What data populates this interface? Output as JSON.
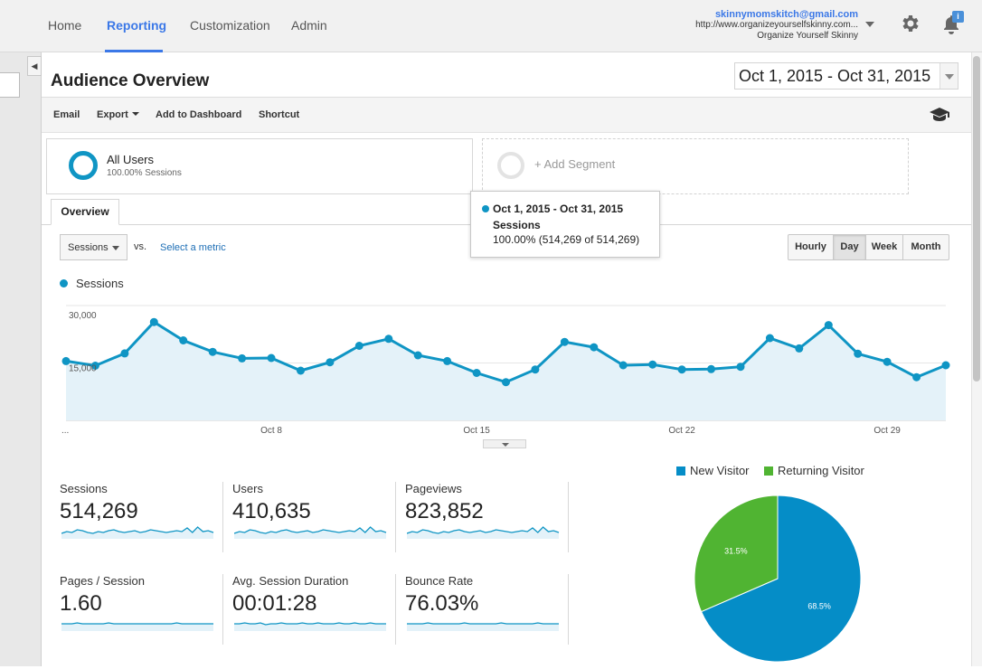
{
  "nav": {
    "tabs": [
      "Home",
      "Reporting",
      "Customization",
      "Admin"
    ],
    "active": "Reporting"
  },
  "account": {
    "email": "skinnymomskitch@gmail.com",
    "url": "http://www.organizeyourselfskinny.com...",
    "property": "Organize Yourself Skinny",
    "notification_badge": "i"
  },
  "page": {
    "title": "Audience Overview",
    "date_range": "Oct 1, 2015 - Oct 31, 2015"
  },
  "toolbar": {
    "email": "Email",
    "export": "Export",
    "add_to_dashboard": "Add to Dashboard",
    "shortcut": "Shortcut"
  },
  "segments": {
    "active_name": "All Users",
    "active_sub": "100.00% Sessions",
    "add_label": "+ Add Segment"
  },
  "tabs": {
    "overview": "Overview"
  },
  "tooltip": {
    "date": "Oct 1, 2015 - Oct 31, 2015",
    "metric": "Sessions",
    "value": "100.00% (514,269 of 514,269)"
  },
  "controls": {
    "metric_select": "Sessions",
    "vs": "vs.",
    "select_metric": "Select a metric",
    "granularity": [
      "Hourly",
      "Day",
      "Week",
      "Month"
    ],
    "granularity_active": "Day"
  },
  "chart_data": {
    "type": "area",
    "legend": "Sessions",
    "series_color": "#0f95c4",
    "fill_color": "#e4f2f9",
    "y_ticks": [
      "30,000",
      "15,000"
    ],
    "x_tick_labels": [
      "...",
      "Oct 8",
      "Oct 15",
      "Oct 22",
      "Oct 29"
    ],
    "x_tick_days": [
      1,
      8,
      15,
      22,
      29
    ],
    "ylim": [
      0,
      30000
    ],
    "x": [
      1,
      2,
      3,
      4,
      5,
      6,
      7,
      8,
      9,
      10,
      11,
      12,
      13,
      14,
      15,
      16,
      17,
      18,
      19,
      20,
      21,
      22,
      23,
      24,
      25,
      26,
      27,
      28,
      29,
      30,
      31
    ],
    "values": [
      15500,
      14300,
      17500,
      25700,
      20900,
      17900,
      16200,
      16300,
      13000,
      15200,
      19500,
      21300,
      17000,
      15500,
      12400,
      10000,
      13300,
      20500,
      19100,
      14400,
      14600,
      13300,
      13400,
      14000,
      21500,
      18800,
      24900,
      17400,
      15300,
      11300,
      14400
    ]
  },
  "stats": [
    {
      "label": "Sessions",
      "value": "514,269",
      "spark": [
        14,
        12,
        13,
        10,
        11,
        13,
        14,
        12,
        13,
        11,
        10,
        12,
        13,
        12,
        11,
        13,
        12,
        10,
        11,
        12,
        13,
        12,
        11,
        12,
        8,
        13,
        7,
        12,
        11,
        13
      ]
    },
    {
      "label": "Users",
      "value": "410,635",
      "spark": [
        14,
        12,
        13,
        10,
        11,
        13,
        14,
        12,
        13,
        11,
        10,
        12,
        13,
        12,
        11,
        13,
        12,
        10,
        11,
        12,
        13,
        12,
        11,
        12,
        8,
        13,
        7,
        12,
        11,
        13
      ]
    },
    {
      "label": "Pageviews",
      "value": "823,852",
      "spark": [
        14,
        12,
        13,
        10,
        11,
        13,
        14,
        12,
        13,
        11,
        10,
        12,
        13,
        12,
        11,
        13,
        12,
        10,
        11,
        12,
        13,
        12,
        11,
        12,
        8,
        13,
        7,
        12,
        11,
        13
      ]
    },
    {
      "label": "Pages / Session",
      "value": "1.60",
      "spark": [
        12,
        12,
        12,
        11,
        12,
        12,
        12,
        12,
        12,
        11,
        12,
        12,
        12,
        12,
        12,
        12,
        12,
        12,
        12,
        12,
        12,
        12,
        11,
        12,
        12,
        12,
        12,
        12,
        12,
        12
      ]
    },
    {
      "label": "Avg. Session Duration",
      "value": "00:01:28",
      "spark": [
        12,
        12,
        11,
        12,
        12,
        11,
        13,
        12,
        12,
        11,
        12,
        12,
        12,
        11,
        12,
        12,
        11,
        12,
        12,
        12,
        11,
        12,
        12,
        11,
        12,
        12,
        11,
        12,
        12,
        12
      ]
    },
    {
      "label": "Bounce Rate",
      "value": "76.03%",
      "spark": [
        12,
        12,
        12,
        12,
        11,
        12,
        12,
        12,
        12,
        12,
        12,
        11,
        12,
        12,
        12,
        12,
        12,
        12,
        11,
        12,
        12,
        12,
        12,
        12,
        12,
        11,
        12,
        12,
        12,
        12
      ]
    }
  ],
  "pie": {
    "type": "pie",
    "legend": [
      "New Visitor",
      "Returning Visitor"
    ],
    "values": [
      68.5,
      31.5
    ],
    "labels": [
      "68.5%",
      "31.5%"
    ],
    "colors": [
      "#058dc7",
      "#50b432"
    ]
  }
}
